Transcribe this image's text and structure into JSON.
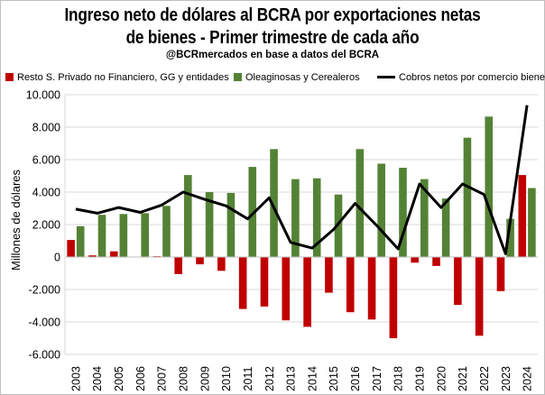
{
  "chart_data": {
    "type": "bar",
    "title_line1": "Ingreso neto de dólares al BCRA por exportaciones netas",
    "title_line2": "de bienes - Primer trimestre de cada año",
    "subtitle": "@BCRmercados en base a datos del BCRA",
    "ylabel": "Millones de dólares",
    "xlabel": "",
    "ylim": [
      -6000,
      10000
    ],
    "yticks": [
      -6000,
      -4000,
      -2000,
      0,
      2000,
      4000,
      6000,
      8000,
      10000
    ],
    "ytick_labels": [
      "-6.000",
      "-4.000",
      "-2.000",
      "0",
      "2.000",
      "4.000",
      "6.000",
      "8.000",
      "10.000"
    ],
    "grid": true,
    "legend_position": "top",
    "categories": [
      "2003",
      "2004",
      "2005",
      "2006",
      "2007",
      "2008",
      "2009",
      "2010",
      "2011",
      "2012",
      "2013",
      "2014",
      "2015",
      "2016",
      "2017",
      "2018",
      "2019",
      "2020",
      "2021",
      "2022",
      "2023",
      "2024"
    ],
    "series": [
      {
        "name": "Resto S. Privado no Financiero, GG y entidades",
        "type": "bar",
        "color": "#c00000",
        "values": [
          1050,
          100,
          350,
          0,
          50,
          -1050,
          -450,
          -850,
          -3200,
          -3050,
          -3900,
          -4300,
          -2200,
          -3400,
          -3850,
          -5000,
          -350,
          -550,
          -2950,
          -4850,
          -2100,
          5050
        ]
      },
      {
        "name": "Oleaginosas y Cerealeros",
        "type": "bar",
        "color": "#548235",
        "values": [
          1900,
          2600,
          2650,
          2700,
          3150,
          5050,
          4000,
          3950,
          5550,
          6650,
          4800,
          4850,
          3850,
          6650,
          5750,
          5500,
          4800,
          3600,
          7350,
          8650,
          2350,
          4250
        ]
      },
      {
        "name": "Cobros netos por comercio bienes",
        "type": "line",
        "color": "#000000",
        "values": [
          2950,
          2700,
          3050,
          2750,
          3200,
          4000,
          3550,
          3150,
          2350,
          3650,
          900,
          550,
          1700,
          3300,
          1950,
          500,
          4500,
          3050,
          4500,
          3850,
          200,
          9350
        ]
      }
    ]
  }
}
